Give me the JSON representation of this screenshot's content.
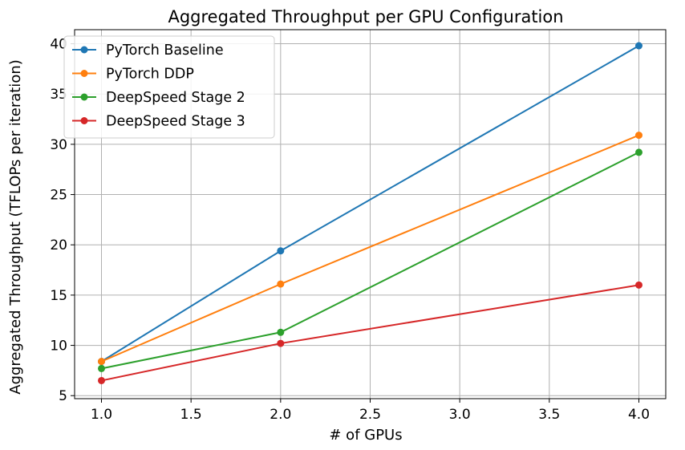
{
  "chart_data": {
    "type": "line",
    "title": "Aggregated Throughput per GPU Configuration",
    "xlabel": "# of GPUs",
    "ylabel": "Aggregated Throughput (TFLOPs per iteration)",
    "x": [
      1,
      2,
      4
    ],
    "xlim": [
      0.85,
      4.15
    ],
    "ylim": [
      4.7,
      41.4
    ],
    "xticks": [
      1.0,
      1.5,
      2.0,
      2.5,
      3.0,
      3.5,
      4.0
    ],
    "xtick_labels": [
      "1.0",
      "1.5",
      "2.0",
      "2.5",
      "3.0",
      "3.5",
      "4.0"
    ],
    "yticks": [
      5,
      10,
      15,
      20,
      25,
      30,
      35,
      40
    ],
    "ytick_labels": [
      "5",
      "10",
      "15",
      "20",
      "25",
      "30",
      "35",
      "40"
    ],
    "grid": true,
    "legend_position": "top-left",
    "series": [
      {
        "name": "PyTorch Baseline",
        "color": "#1f77b4",
        "values": [
          8.4,
          19.4,
          39.8
        ]
      },
      {
        "name": "PyTorch DDP",
        "color": "#ff7f0e",
        "values": [
          8.4,
          16.1,
          30.9
        ]
      },
      {
        "name": "DeepSpeed Stage 2",
        "color": "#2ca02c",
        "values": [
          7.7,
          11.3,
          29.2
        ]
      },
      {
        "name": "DeepSpeed Stage 3",
        "color": "#d62728",
        "values": [
          6.5,
          10.2,
          16.0
        ]
      }
    ]
  }
}
